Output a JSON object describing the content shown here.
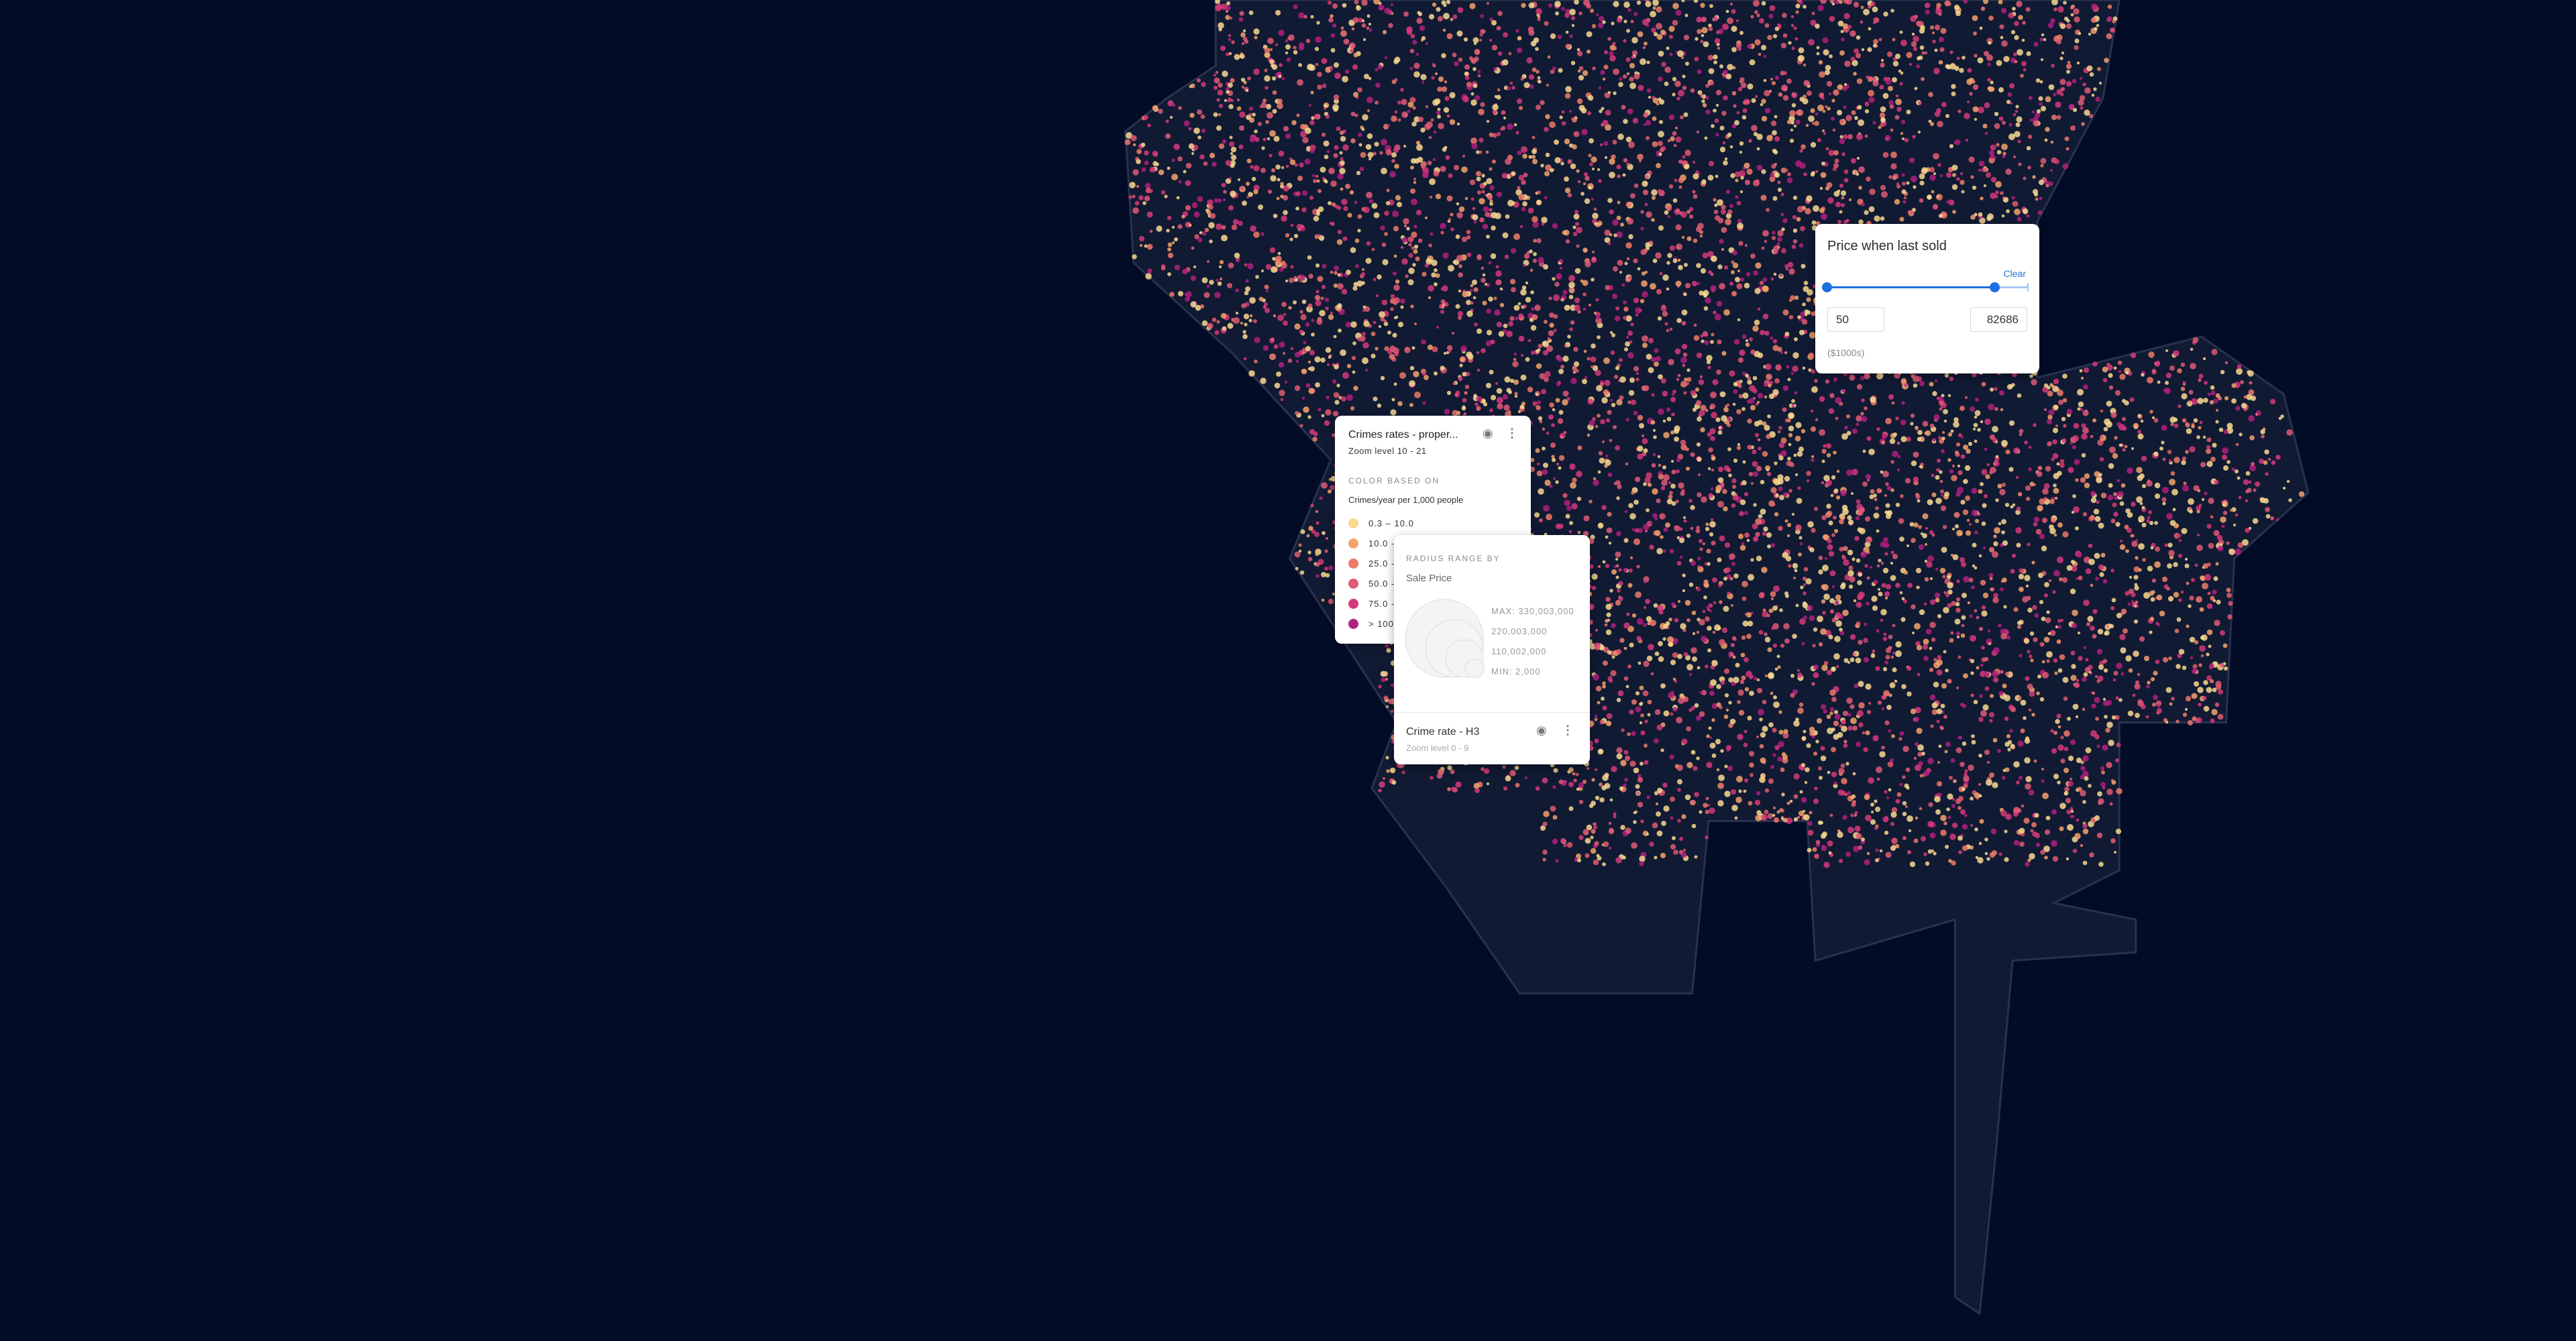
{
  "map": {
    "background": "#030c27",
    "city_fill": "#111a33",
    "city_stroke": "#28324d"
  },
  "price_filter": {
    "title": "Price when last sold",
    "clear_label": "Clear",
    "min_value": "50",
    "max_value": "82686",
    "unit": "($1000s)",
    "range_fraction": [
      0,
      0.83
    ],
    "accent": "#1d6fe0"
  },
  "layers": [
    {
      "title": "Crimes rates - proper...",
      "zoom": "Zoom level 10 - 21",
      "color_caption": "COLOR BASED ON",
      "color_field": "Crimes/year per 1,000 people",
      "bins": [
        {
          "label": "0.3 – 10.0",
          "color": "#f9d98f"
        },
        {
          "label": "10.0 -",
          "color": "#f4a36b"
        },
        {
          "label": "25.0 -",
          "color": "#ee7a6a"
        },
        {
          "label": "50.0 -",
          "color": "#e05a74"
        },
        {
          "label": "75.0 -",
          "color": "#d63a7a"
        },
        {
          "label": "> 100",
          "color": "#b2207f"
        }
      ]
    },
    {
      "radius_caption": "RADIUS RANGE BY",
      "radius_field": "Sale Price",
      "radius_labels": [
        "MAX: 330,003,000",
        "220,003,000",
        "110,002,000",
        "MIN: 2,000"
      ],
      "title": "Crime rate - H3",
      "zoom": "Zoom level 0 - 9"
    }
  ]
}
